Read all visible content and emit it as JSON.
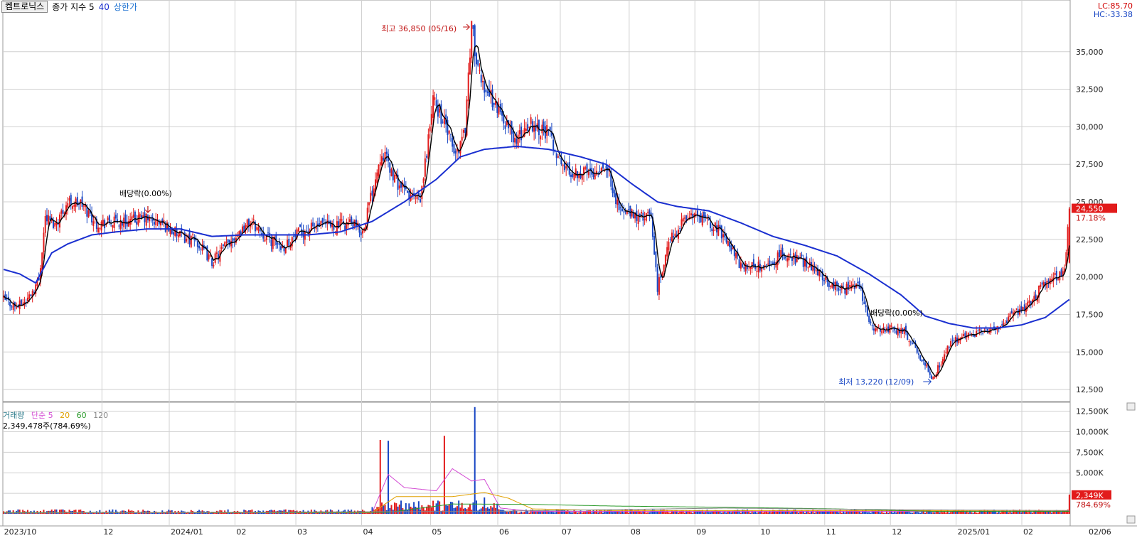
{
  "header": {
    "stock_name": "켐트로닉스",
    "indicator_label": "종가 지수 5",
    "ma_long": "40",
    "upper_limit": "상한가",
    "lc": "LC:85.70",
    "hc": "HC:-33.38"
  },
  "annotations": {
    "high": "최고 36,850 (05/16)",
    "low": "최저 13,220 (12/09)",
    "dividend1": "배당락(0.00%)",
    "dividend2": "배당락(0.00%)"
  },
  "price_box": {
    "value": "24,550",
    "pct": "17.18%"
  },
  "volume_header": {
    "title": "거래량",
    "ma_label": "단순 5",
    "ma20": "20",
    "ma60": "60",
    "ma120": "120",
    "current": "2,349,478주(784.69%)"
  },
  "volume_box": {
    "value": "2,349K",
    "pct": "784.69%"
  },
  "colors": {
    "up": "#e21b1b",
    "down": "#1846c4",
    "ma5": "#000000",
    "ma40": "#1a2fd0",
    "grid": "#d0d0d0",
    "vol_ma5": "#d34cd3",
    "vol_ma20": "#e0a000",
    "vol_ma60": "#2a9a2a",
    "vol_ma120": "#888888"
  },
  "chart_data": {
    "type": "candlestick",
    "price_axis": {
      "ticks": [
        12500,
        15000,
        17500,
        20000,
        22500,
        25000,
        27500,
        30000,
        32500,
        35000
      ],
      "tick_labels": [
        "12,500",
        "15,000",
        "17,500",
        "20,000",
        "22,500",
        "25,000",
        "27,500",
        "30,000",
        "32,500",
        "35,000"
      ],
      "range": [
        11700,
        37500
      ]
    },
    "volume_axis": {
      "ticks": [
        2500,
        5000,
        7500,
        10000,
        12500
      ],
      "tick_labels": [
        "2,500K",
        "5,000K",
        "7,500K",
        "10,000K",
        "12,500K"
      ],
      "range": [
        0,
        13500
      ]
    },
    "x_labels": [
      "2023/10",
      "12",
      "2024/01",
      "02",
      "03",
      "04",
      "05",
      "06",
      "07",
      "08",
      "09",
      "10",
      "11",
      "12",
      "2025/01",
      "02",
      "02/06"
    ],
    "high": {
      "value": 36850,
      "date": "05/16"
    },
    "low": {
      "value": 13220,
      "date": "12/09"
    },
    "last_close": 24550,
    "ma_periods": [
      5,
      40
    ],
    "price_path": [
      [
        0,
        18500
      ],
      [
        8,
        18000
      ],
      [
        14,
        18400
      ],
      [
        22,
        19800
      ],
      [
        26,
        24000
      ],
      [
        32,
        23500
      ],
      [
        40,
        25000
      ],
      [
        48,
        24900
      ],
      [
        58,
        23600
      ],
      [
        64,
        23600
      ],
      [
        78,
        23700
      ],
      [
        88,
        23900
      ],
      [
        100,
        23500
      ],
      [
        110,
        22700
      ],
      [
        120,
        22400
      ],
      [
        130,
        21000
      ],
      [
        142,
        22500
      ],
      [
        154,
        23700
      ],
      [
        166,
        22500
      ],
      [
        174,
        22000
      ],
      [
        184,
        22900
      ],
      [
        196,
        23400
      ],
      [
        206,
        23400
      ],
      [
        216,
        23600
      ],
      [
        224,
        23000
      ],
      [
        236,
        28500
      ],
      [
        244,
        26500
      ],
      [
        252,
        25500
      ],
      [
        260,
        25000
      ],
      [
        268,
        31800
      ],
      [
        276,
        30000
      ],
      [
        282,
        28000
      ],
      [
        288,
        30000
      ],
      [
        292,
        36850
      ],
      [
        296,
        33500
      ],
      [
        304,
        32000
      ],
      [
        312,
        30500
      ],
      [
        320,
        29000
      ],
      [
        328,
        30300
      ],
      [
        340,
        29600
      ],
      [
        348,
        27500
      ],
      [
        354,
        27000
      ],
      [
        366,
        27000
      ],
      [
        376,
        27500
      ],
      [
        384,
        24500
      ],
      [
        394,
        24000
      ],
      [
        404,
        24000
      ],
      [
        408,
        19200
      ],
      [
        412,
        21000
      ],
      [
        416,
        22500
      ],
      [
        428,
        24200
      ],
      [
        440,
        23600
      ],
      [
        450,
        22800
      ],
      [
        460,
        20700
      ],
      [
        476,
        20700
      ],
      [
        486,
        21500
      ],
      [
        494,
        21200
      ],
      [
        506,
        20700
      ],
      [
        516,
        19500
      ],
      [
        524,
        19200
      ],
      [
        534,
        19300
      ],
      [
        542,
        16500
      ],
      [
        552,
        16600
      ],
      [
        562,
        16400
      ],
      [
        570,
        15000
      ],
      [
        580,
        13220
      ],
      [
        590,
        15500
      ],
      [
        600,
        16200
      ],
      [
        610,
        16300
      ],
      [
        620,
        16600
      ],
      [
        630,
        17500
      ],
      [
        640,
        18200
      ],
      [
        650,
        19700
      ],
      [
        656,
        20000
      ],
      [
        662,
        20400
      ],
      [
        665,
        24550
      ]
    ],
    "ma40_path": [
      [
        0,
        20500
      ],
      [
        10,
        20200
      ],
      [
        20,
        19600
      ],
      [
        30,
        21600
      ],
      [
        40,
        22200
      ],
      [
        55,
        22800
      ],
      [
        70,
        23000
      ],
      [
        90,
        23200
      ],
      [
        110,
        23200
      ],
      [
        130,
        22700
      ],
      [
        150,
        22800
      ],
      [
        170,
        22800
      ],
      [
        190,
        22800
      ],
      [
        210,
        23000
      ],
      [
        230,
        23700
      ],
      [
        250,
        25000
      ],
      [
        270,
        26500
      ],
      [
        285,
        28000
      ],
      [
        300,
        28500
      ],
      [
        320,
        28700
      ],
      [
        340,
        28500
      ],
      [
        360,
        28000
      ],
      [
        376,
        27500
      ],
      [
        392,
        26200
      ],
      [
        408,
        25000
      ],
      [
        420,
        24700
      ],
      [
        440,
        24400
      ],
      [
        460,
        23600
      ],
      [
        480,
        22700
      ],
      [
        500,
        22100
      ],
      [
        520,
        21400
      ],
      [
        540,
        20200
      ],
      [
        560,
        18800
      ],
      [
        575,
        17400
      ],
      [
        590,
        16900
      ],
      [
        605,
        16600
      ],
      [
        620,
        16600
      ],
      [
        635,
        16800
      ],
      [
        650,
        17300
      ],
      [
        665,
        18500
      ]
    ],
    "volume_series": {
      "name": "거래량",
      "peaks": [
        [
          235,
          9000
        ],
        [
          240,
          8900
        ],
        [
          275,
          9500
        ],
        [
          294,
          13000
        ],
        [
          300,
          2000
        ],
        [
          665,
          2349
        ]
      ],
      "base": 300
    },
    "volume_ma": [
      {
        "name": "5",
        "path": [
          [
            0,
            150
          ],
          [
            230,
            150
          ],
          [
            240,
            4800
          ],
          [
            250,
            3200
          ],
          [
            270,
            2800
          ],
          [
            280,
            5500
          ],
          [
            292,
            4000
          ],
          [
            300,
            4200
          ],
          [
            310,
            700
          ],
          [
            330,
            300
          ],
          [
            665,
            300
          ]
        ]
      },
      {
        "name": "20",
        "path": [
          [
            0,
            150
          ],
          [
            230,
            150
          ],
          [
            245,
            2100
          ],
          [
            280,
            2100
          ],
          [
            300,
            2600
          ],
          [
            315,
            1900
          ],
          [
            330,
            600
          ],
          [
            380,
            400
          ],
          [
            665,
            400
          ]
        ]
      },
      {
        "name": "60",
        "path": [
          [
            0,
            150
          ],
          [
            240,
            180
          ],
          [
            280,
            1200
          ],
          [
            330,
            1150
          ],
          [
            380,
            950
          ],
          [
            450,
            800
          ],
          [
            520,
            600
          ],
          [
            580,
            300
          ],
          [
            665,
            300
          ]
        ]
      },
      {
        "name": "120",
        "path": [
          [
            0,
            100
          ],
          [
            300,
            300
          ],
          [
            450,
            700
          ],
          [
            560,
            500
          ],
          [
            665,
            400
          ]
        ]
      }
    ],
    "n_bars": 666
  }
}
